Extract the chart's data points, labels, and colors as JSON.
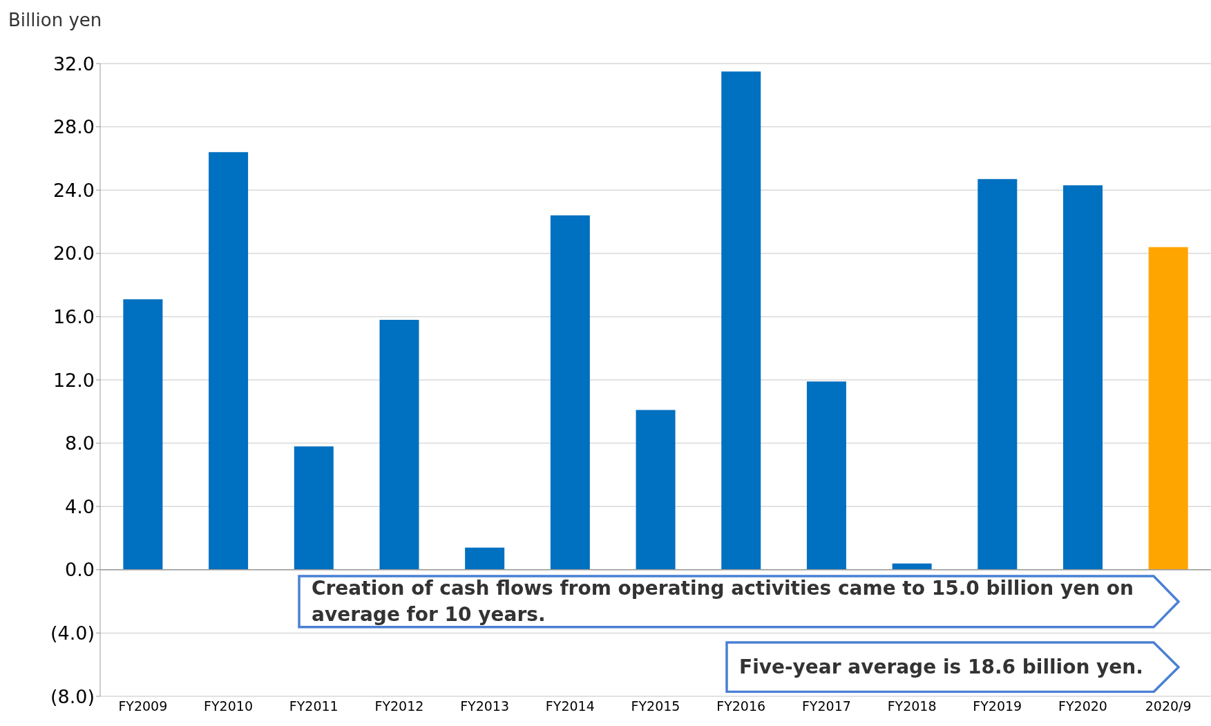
{
  "chart_data": {
    "type": "bar",
    "ylabel": "Billion yen",
    "categories": [
      "FY2009",
      "FY2010",
      "FY2011",
      "FY2012",
      "FY2013",
      "FY2014",
      "FY2015",
      "FY2016",
      "FY2017",
      "FY2018",
      "FY2019",
      "FY2020",
      "2020/9"
    ],
    "values": [
      17.1,
      26.4,
      7.8,
      15.8,
      1.4,
      22.4,
      10.1,
      31.5,
      11.9,
      0.4,
      24.7,
      24.3,
      20.4
    ],
    "colors": [
      "#0070c0",
      "#0070c0",
      "#0070c0",
      "#0070c0",
      "#0070c0",
      "#0070c0",
      "#0070c0",
      "#0070c0",
      "#0070c0",
      "#0070c0",
      "#0070c0",
      "#0070c0",
      "#ffa500"
    ],
    "ylim": [
      -8,
      32
    ],
    "yticks": [
      {
        "value": -8,
        "label": "(8.0)"
      },
      {
        "value": -4,
        "label": "(4.0)"
      },
      {
        "value": 0,
        "label": "0.0"
      },
      {
        "value": 4,
        "label": "4.0"
      },
      {
        "value": 8,
        "label": "8.0"
      },
      {
        "value": 12,
        "label": "12.0"
      },
      {
        "value": 16,
        "label": "16.0"
      },
      {
        "value": 20,
        "label": "20.0"
      },
      {
        "value": 24,
        "label": "24.0"
      },
      {
        "value": 28,
        "label": "28.0"
      },
      {
        "value": 32,
        "label": "32.0"
      }
    ],
    "grid": "y",
    "annotations": [
      "Creation of cash flows from operating activities came to 15.0 billion yen on average for 10 years.",
      "Five-year average is 18.6 billion yen."
    ]
  }
}
